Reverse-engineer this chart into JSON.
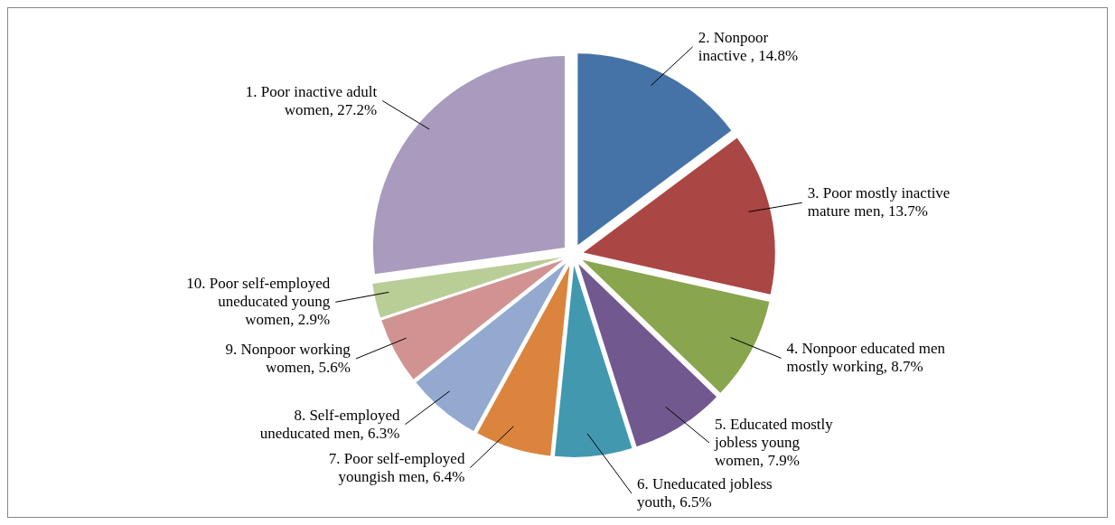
{
  "chart_data": {
    "type": "pie",
    "categories": [
      "2. Nonpoor inactive ",
      "3. Poor mostly inactive mature men",
      "4. Nonpoor educated men mostly working",
      "5. Educated mostly jobless young women",
      "6. Uneducated jobless youth",
      "7. Poor self-employed youngish men",
      "8. Self-employed uneducated men",
      "9. Nonpoor working women",
      "10. Poor self-employed uneducated  young women",
      "1. Poor inactive adult women"
    ],
    "values": [
      14.8,
      13.7,
      8.7,
      7.9,
      6.5,
      6.4,
      6.3,
      5.6,
      2.9,
      27.2
    ],
    "colors": [
      "#4573a7",
      "#aa4644",
      "#89a54e",
      "#71588f",
      "#4298af",
      "#db843d",
      "#93a9cf",
      "#d19392",
      "#b9cd96",
      "#a99bbd"
    ],
    "value_labels": [
      "14.8%",
      "13.7%",
      "8.7%",
      "7.9%",
      "6.5%",
      "6.4%",
      "6.3%",
      "5.6%",
      "2.9%",
      "27.2%"
    ],
    "legend": false
  }
}
